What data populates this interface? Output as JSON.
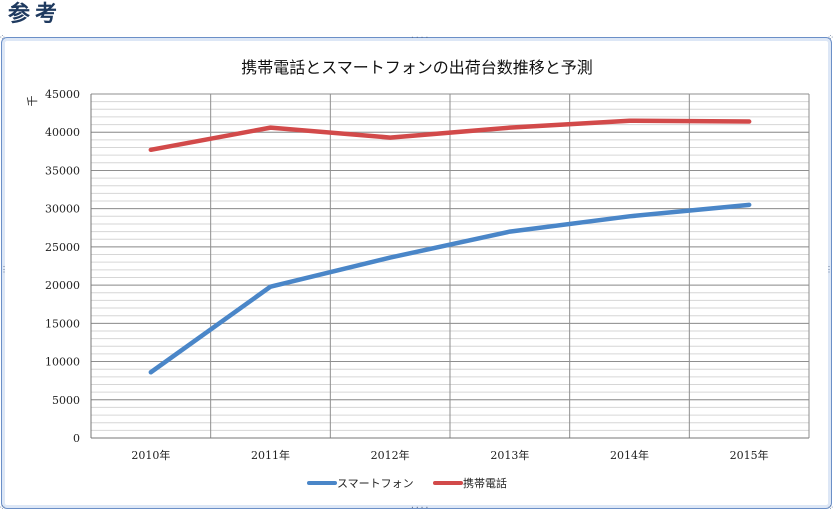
{
  "page": {
    "heading": "参考"
  },
  "chart_data": {
    "type": "line",
    "title": "携帯電話とスマートフォンの出荷台数推移と予測",
    "xlabel": "",
    "ylabel": "千",
    "categories": [
      "2010年",
      "2011年",
      "2012年",
      "2013年",
      "2014年",
      "2015年"
    ],
    "ylim": [
      0,
      45000
    ],
    "yticks": [
      0,
      5000,
      10000,
      15000,
      20000,
      25000,
      30000,
      35000,
      40000,
      45000
    ],
    "grid": true,
    "legend_position": "bottom",
    "series": [
      {
        "name": "スマートフォン",
        "color": "#4a86c8",
        "values": [
          8600,
          19800,
          23600,
          27000,
          29000,
          30500
        ]
      },
      {
        "name": "携帯電話",
        "color": "#d24a4a",
        "values": [
          37700,
          40600,
          39300,
          40600,
          41500,
          41400
        ]
      }
    ]
  }
}
